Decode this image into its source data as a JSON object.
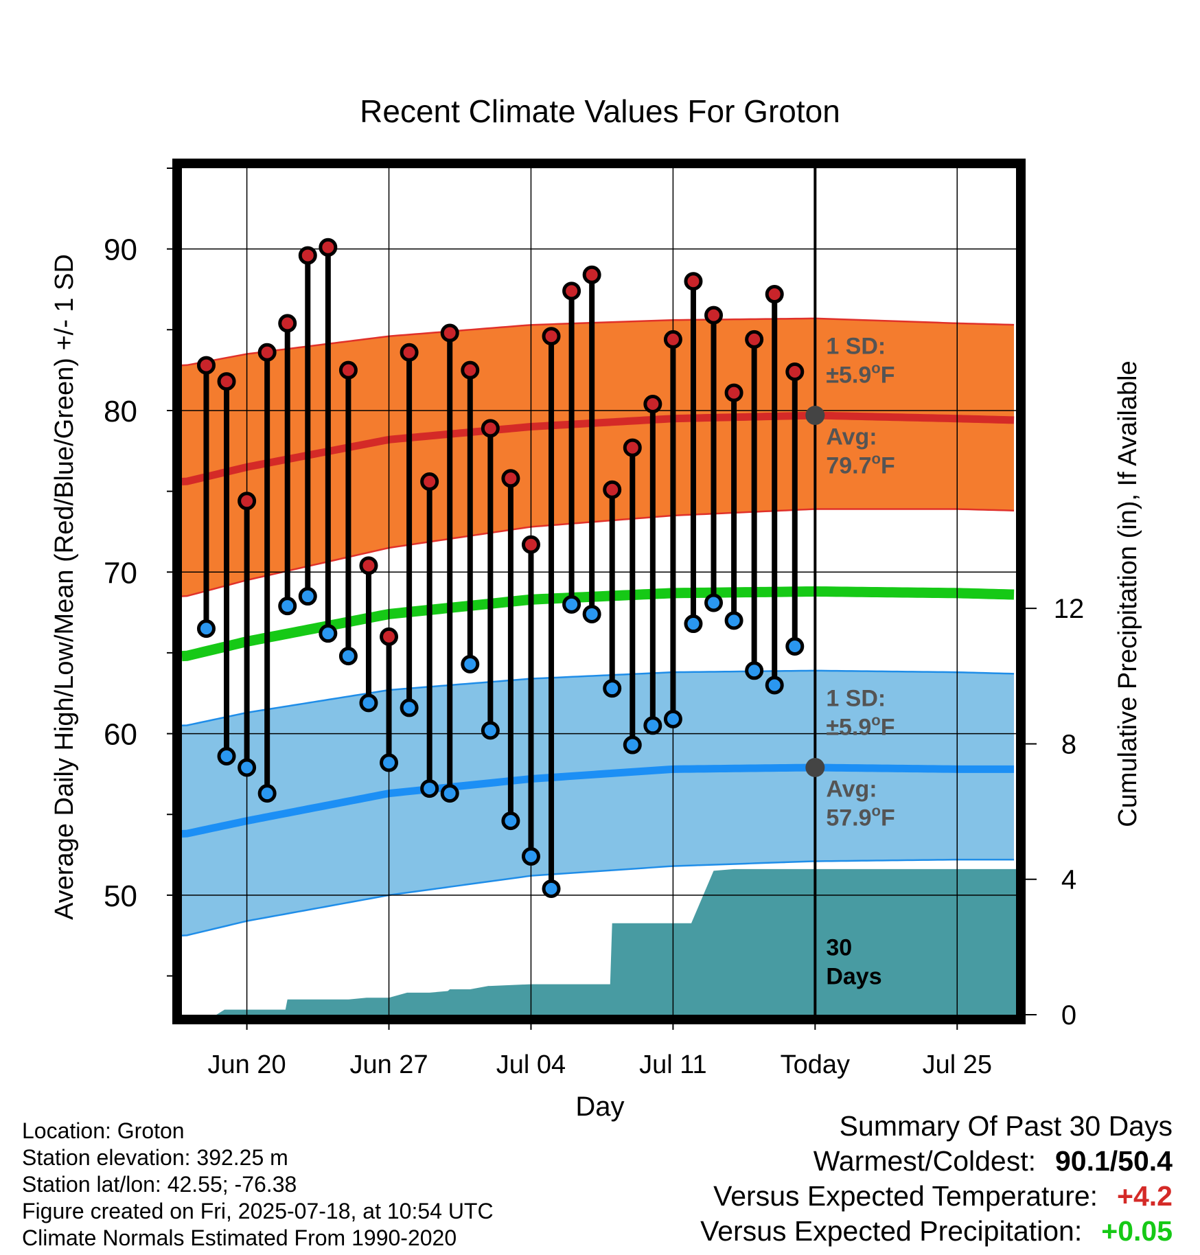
{
  "chart_data": {
    "type": "line",
    "title": "Recent Climate Values For Groton",
    "xlabel": "Day",
    "ylabel_left": "Average Daily High/Low/Mean (Red/Blue/Green) +/- 1 SD",
    "ylabel_right": "Cumulative Precipitation (in), If Available",
    "x_ticks": [
      {
        "day": 0,
        "label": "Jun 20"
      },
      {
        "day": 7,
        "label": "Jun 27"
      },
      {
        "day": 14,
        "label": "Jul 04"
      },
      {
        "day": 21,
        "label": "Jul 11"
      },
      {
        "day": 28,
        "label": "Today"
      },
      {
        "day": 35,
        "label": "Jul 25"
      }
    ],
    "x_range": [
      -3.2,
      37.9
    ],
    "y_left_range": [
      42.6,
      95
    ],
    "y_left_ticks": [
      50,
      60,
      70,
      80,
      90
    ],
    "y_right_range": [
      0,
      25
    ],
    "y_right_ticks": [
      0,
      4,
      8,
      12
    ],
    "grid": true,
    "daily": {
      "x": [
        -2,
        -1,
        0,
        1,
        2,
        3,
        4,
        5,
        6,
        7,
        8,
        9,
        10,
        11,
        12,
        13,
        14,
        15,
        16,
        17,
        18,
        19,
        20,
        21,
        22,
        23,
        24,
        25,
        26,
        27
      ],
      "highs": [
        82.8,
        81.8,
        74.4,
        83.6,
        85.4,
        89.6,
        90.1,
        82.5,
        70.4,
        66.0,
        83.6,
        75.6,
        84.8,
        82.5,
        78.9,
        75.8,
        71.7,
        84.6,
        87.4,
        88.4,
        75.1,
        77.7,
        80.4,
        84.4,
        88.0,
        85.9,
        81.1,
        84.4,
        87.2,
        82.4
      ],
      "lows": [
        66.5,
        58.6,
        57.9,
        56.3,
        67.9,
        68.5,
        66.2,
        64.8,
        61.9,
        58.2,
        61.6,
        56.6,
        56.3,
        64.3,
        60.2,
        54.6,
        52.4,
        50.4,
        68.0,
        67.4,
        62.8,
        59.3,
        60.5,
        60.9,
        66.8,
        68.1,
        67.0,
        63.9,
        63.0,
        65.4
      ]
    },
    "normals": {
      "x": [
        -3,
        0,
        7,
        14,
        21,
        28,
        35,
        38
      ],
      "avg_high": [
        75.6,
        76.5,
        78.2,
        79.0,
        79.5,
        79.7,
        79.5,
        79.4
      ],
      "high_sd_upper": [
        82.8,
        83.5,
        84.6,
        85.3,
        85.6,
        85.7,
        85.4,
        85.3
      ],
      "high_sd_lower": [
        68.5,
        69.5,
        71.5,
        72.8,
        73.5,
        73.9,
        73.9,
        73.8
      ],
      "avg_mean": [
        64.8,
        65.7,
        67.4,
        68.3,
        68.7,
        68.8,
        68.7,
        68.6
      ],
      "avg_low": [
        53.8,
        54.6,
        56.3,
        57.2,
        57.8,
        57.9,
        57.8,
        57.8
      ],
      "low_sd_upper": [
        60.5,
        61.3,
        62.7,
        63.4,
        63.8,
        63.9,
        63.8,
        63.7
      ],
      "low_sd_lower": [
        47.5,
        48.4,
        50.0,
        51.2,
        51.8,
        52.1,
        52.2,
        52.2
      ]
    },
    "precip": {
      "x": [
        -3.3,
        -1.5,
        -1.1,
        0,
        1,
        1.9,
        2,
        5,
        5.9,
        6,
        7,
        7.9,
        8,
        9,
        9.9,
        10,
        11,
        11.9,
        12,
        14,
        15,
        16,
        17.9,
        18,
        19,
        21,
        21.9,
        23,
        24,
        28,
        37.9
      ],
      "values": [
        0,
        0,
        0.15,
        0.15,
        0.15,
        0.15,
        0.45,
        0.45,
        0.5,
        0.5,
        0.5,
        0.65,
        0.65,
        0.65,
        0.7,
        0.75,
        0.75,
        0.85,
        0.85,
        0.9,
        0.9,
        0.9,
        0.9,
        2.7,
        2.7,
        2.7,
        2.7,
        4.25,
        4.3,
        4.3,
        4.3
      ]
    },
    "annotations": {
      "high_sd": {
        "line1": "1 SD:",
        "line2": "±5.9",
        "unit": "F"
      },
      "high_avg": {
        "line1": "Avg:",
        "line2": "79.7",
        "unit": "F"
      },
      "low_sd": {
        "line1": "1 SD:",
        "line2": "±5.9",
        "unit": "F"
      },
      "low_avg": {
        "line1": "Avg:",
        "line2": "57.9",
        "unit": "F"
      },
      "period": {
        "line1": "30",
        "line2": "Days"
      },
      "today_high": 79.7,
      "today_low": 57.9
    },
    "colors": {
      "high_band": "#f47c2e",
      "high_band_edge": "#e0312a",
      "avg_high": "#d42a27",
      "avg_mean": "#16c916",
      "low_band": "#84c2e7",
      "low_band_edge": "#1f8de8",
      "avg_low": "#1c8ff5",
      "precip": "#489ba2",
      "high_dot": "#c9242a",
      "low_dot": "#2a97f0",
      "annotation": "#545454",
      "today_marker": "#444444"
    }
  },
  "footer": {
    "location": "Location: Groton",
    "elevation": "Station elevation: 392.25 m",
    "latlon": "Station lat/lon: 42.55; -76.38",
    "created": "Figure created on Fri, 2025-07-18, at 10:54 UTC",
    "normals": "Climate Normals Estimated From 1990-2020"
  },
  "summary": {
    "title": "Summary Of Past 30 Days",
    "warmest_label": "Warmest/Coldest:",
    "warmest_value": "90.1/50.4",
    "temp_label": "Versus Expected Temperature:",
    "temp_value": "+4.2",
    "temp_color": "#d42a27",
    "precip_label": "Versus Expected Precipitation:",
    "precip_value": "+0.05",
    "precip_color": "#16c916"
  }
}
